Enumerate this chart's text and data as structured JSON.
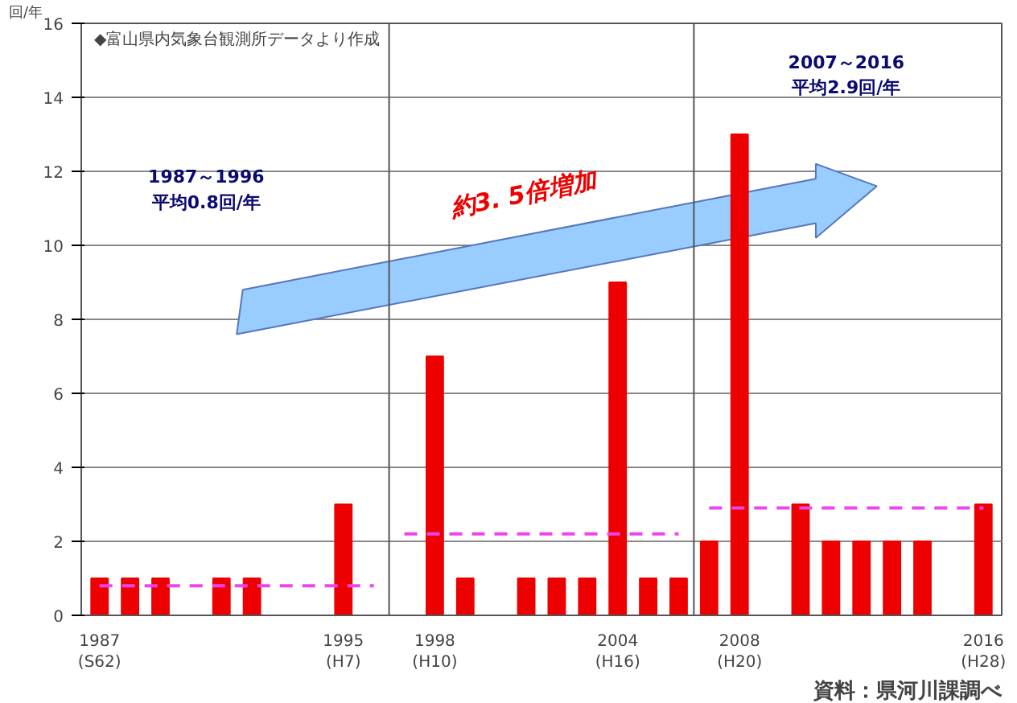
{
  "chart_data": {
    "type": "bar",
    "ylabel": "回/年",
    "categories": [
      "1987\n(S62)",
      null,
      null,
      null,
      null,
      null,
      null,
      null,
      "1995\n(H7)",
      null,
      null,
      "1998\n(H10)",
      null,
      null,
      null,
      null,
      null,
      "2004\n(H16)",
      null,
      null,
      null,
      "2008\n(H20)",
      null,
      null,
      null,
      null,
      null,
      null,
      null,
      "2016\n(H28)"
    ],
    "series": [
      {
        "color": "#ee0000",
        "values": [
          1,
          1,
          1,
          0,
          1,
          1,
          0,
          0,
          3,
          0,
          0,
          7,
          1,
          0,
          1,
          1,
          1,
          9,
          1,
          1,
          2,
          13,
          0,
          3,
          2,
          2,
          2,
          2,
          0,
          3
        ]
      },
      {
        "type": "line",
        "line_style": "dashed",
        "color": "#ee44ee",
        "values": [
          0.8,
          0.8,
          0.8,
          0.8,
          0.8,
          0.8,
          0.8,
          0.8,
          0.8,
          0.8,
          null,
          null,
          null,
          null,
          null,
          null,
          null,
          null,
          null,
          null,
          null,
          null,
          null,
          null,
          null,
          null,
          null,
          null,
          null,
          null
        ]
      },
      {
        "type": "line",
        "line_style": "dashed",
        "color": "#ee44ee",
        "values": [
          null,
          null,
          null,
          null,
          null,
          null,
          null,
          null,
          null,
          null,
          2.2,
          2.2,
          2.2,
          2.2,
          2.2,
          2.2,
          2.2,
          2.2,
          2.2,
          2.2,
          null,
          null,
          null,
          null,
          null,
          null,
          null,
          null,
          null,
          null
        ]
      },
      {
        "type": "line",
        "line_style": "dashed",
        "color": "#ee44ee",
        "values": [
          null,
          null,
          null,
          null,
          null,
          null,
          null,
          null,
          null,
          null,
          null,
          null,
          null,
          null,
          null,
          null,
          null,
          null,
          null,
          null,
          2.9,
          2.9,
          2.9,
          2.9,
          2.9,
          2.9,
          2.9,
          2.9,
          2.9,
          2.9
        ]
      }
    ],
    "ylim": [
      0,
      16
    ],
    "yticks": [
      0,
      2,
      4,
      6,
      8,
      10,
      12,
      14,
      16
    ],
    "grid": "y",
    "annotations": [
      "◆富山県内気象台観測所データより作成",
      "1987～1996\n平均0.8回/年",
      "2007～2016\n平均2.9回/年",
      "約3. 5倍増加",
      "資料：県河川課調べ"
    ]
  }
}
